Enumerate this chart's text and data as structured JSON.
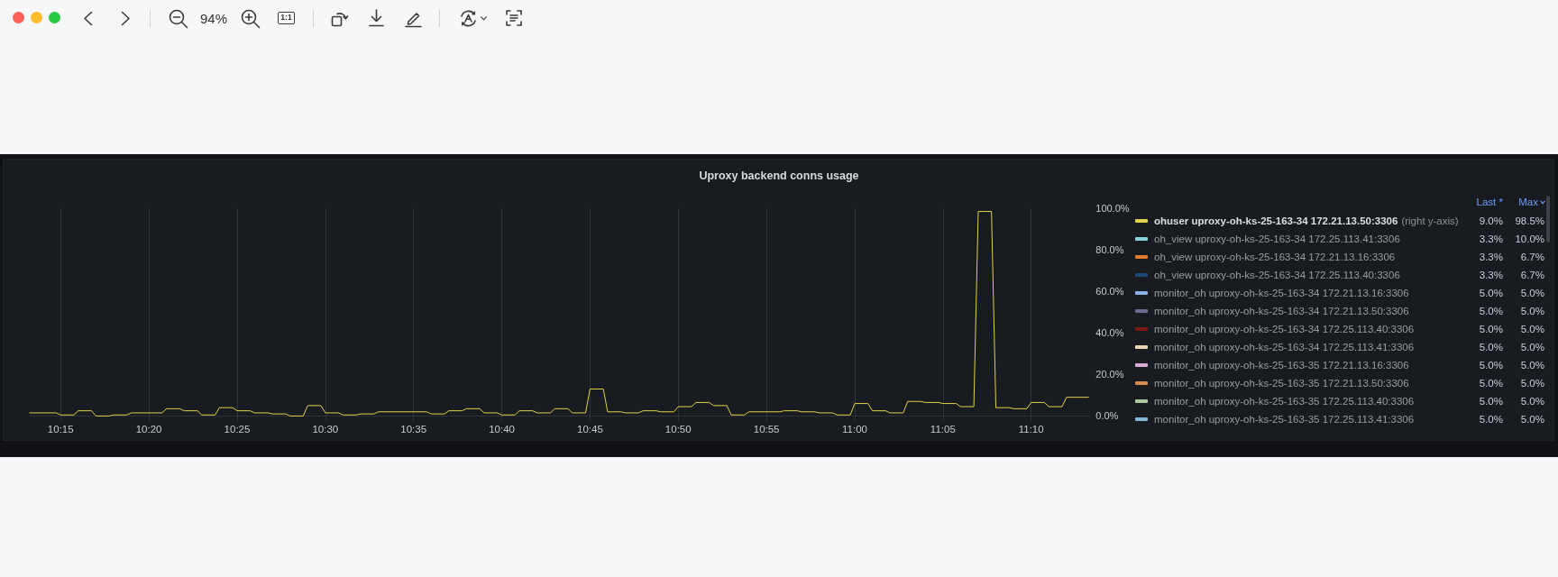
{
  "chart_data": {
    "type": "line",
    "title": "Uproxy backend conns usage",
    "x": [
      10.22083,
      10.24583,
      10.25,
      10.2625,
      10.26667,
      10.27917,
      10.28333,
      10.29583,
      10.3,
      10.3125,
      10.31667,
      10.34583,
      10.35,
      10.3625,
      10.36667,
      10.37917,
      10.38333,
      10.39583,
      10.4,
      10.4125,
      10.41667,
      10.42917,
      10.43333,
      10.44583,
      10.45,
      10.4625,
      10.46667,
      10.47917,
      10.48333,
      10.49583,
      10.5,
      10.5125,
      10.51667,
      10.52917,
      10.53333,
      10.54583,
      10.55,
      10.59583,
      10.6,
      10.6125,
      10.61667,
      10.62917,
      10.63333,
      10.64583,
      10.65,
      10.6625,
      10.66667,
      10.67917,
      10.68333,
      10.69583,
      10.7,
      10.7125,
      10.71667,
      10.72917,
      10.73333,
      10.74583,
      10.75,
      10.7625,
      10.76667,
      10.77917,
      10.78333,
      10.79583,
      10.8,
      10.8125,
      10.81667,
      10.82917,
      10.83333,
      10.84583,
      10.85,
      10.8625,
      10.86667,
      10.87917,
      10.88333,
      10.89583,
      10.9,
      10.92917,
      10.93333,
      10.94583,
      10.95,
      10.9625,
      10.96667,
      10.97917,
      10.98333,
      10.99583,
      11,
      11.0125,
      11.01667,
      11.02917,
      11.03333,
      11.04583,
      11.05,
      11.0625,
      11.06667,
      11.07917,
      11.08333,
      11.09583,
      11.1,
      11.1125,
      11.11667,
      11.12917,
      11.13333,
      11.14583,
      11.15,
      11.1625,
      11.16667,
      11.17917,
      11.18333,
      11.19583,
      11.2,
      11.22083
    ],
    "series": [
      {
        "name": "ohuser uproxy-oh-ks-25-163-34 172.21.13.50:3306",
        "color": "#e3d04a",
        "values": [
          1.5,
          1.5,
          0.5,
          0.5,
          2.5,
          2.5,
          0,
          0,
          0.5,
          0.5,
          1.5,
          1.5,
          3.5,
          3.5,
          2.5,
          2.5,
          0.5,
          0.5,
          4,
          4,
          2.5,
          2.5,
          1.5,
          1.5,
          1,
          1,
          0,
          0,
          5,
          5,
          1.5,
          1.5,
          0.5,
          0.5,
          1,
          1,
          2,
          2,
          1,
          1,
          2.5,
          2.5,
          3.5,
          3.5,
          1.5,
          1.5,
          0.5,
          0.5,
          2.5,
          2.5,
          1.5,
          1.5,
          3.5,
          3.5,
          1.5,
          1.5,
          13,
          13,
          2,
          2,
          1.5,
          1.5,
          2.5,
          2.5,
          2,
          2,
          4.5,
          4.5,
          6.5,
          6.5,
          5,
          5,
          0.5,
          0.5,
          2,
          2,
          2.5,
          2.5,
          2,
          2,
          1.5,
          1.5,
          0.5,
          0.5,
          6,
          6,
          2.5,
          2.5,
          1.5,
          1.5,
          7,
          7,
          6.5,
          6.5,
          6,
          6,
          4.5,
          4.5,
          98.5,
          98.5,
          4,
          4,
          3.5,
          3.5,
          6.5,
          6.5,
          4.5,
          4.5,
          9,
          9
        ]
      },
      {
        "name": "oh_view uproxy-oh-ks-25-163-34 172.25.113.41:3306",
        "color": "#8ad3de",
        "values": [
          null,
          null,
          null,
          null,
          null,
          null,
          null,
          null,
          null,
          null,
          null,
          null,
          null,
          null,
          null,
          null,
          null,
          null,
          null,
          null,
          null,
          null,
          null,
          null,
          null,
          null,
          null,
          null,
          null,
          null,
          null,
          null,
          null,
          null,
          null,
          null,
          null,
          null,
          null,
          null,
          null,
          null,
          null,
          null,
          null,
          null,
          null,
          null,
          null,
          null,
          null,
          null,
          null,
          null,
          null,
          null,
          null,
          null,
          null,
          null,
          null,
          null,
          null,
          null,
          null,
          null,
          null,
          null,
          null,
          null,
          null,
          null,
          null,
          null,
          null,
          null,
          null,
          null,
          null,
          null,
          null,
          null,
          null,
          null,
          null,
          null,
          null,
          null,
          null,
          null,
          null,
          null,
          null,
          null,
          null,
          null,
          null,
          null,
          null,
          null,
          null,
          null,
          null,
          null,
          null,
          null,
          null,
          null,
          null,
          null
        ]
      },
      {
        "name": "oh_view uproxy-oh-ks-25-163-34 172.21.13.16:3306",
        "color": "#e07b30",
        "values": [
          null,
          null,
          null,
          null,
          null,
          null,
          null,
          null,
          null,
          null,
          null,
          null,
          null,
          null,
          null,
          null,
          null,
          null,
          null,
          null,
          null,
          null,
          null,
          null,
          null,
          null,
          null,
          null,
          null,
          null,
          null,
          null,
          null,
          null,
          null,
          null,
          null,
          null,
          null,
          null,
          null,
          null,
          null,
          null,
          null,
          null,
          null,
          null,
          null,
          null,
          null,
          null,
          null,
          null,
          null,
          null,
          null,
          null,
          null,
          null,
          null,
          null,
          null,
          null,
          null,
          null,
          null,
          null,
          null,
          null,
          null,
          null,
          null,
          null,
          null,
          null,
          null,
          null,
          null,
          null,
          null,
          null,
          null,
          null,
          null,
          null,
          null,
          null,
          null,
          null,
          null,
          null,
          null,
          null,
          null,
          null,
          null,
          null,
          null,
          null,
          null,
          null,
          null,
          null,
          null,
          null,
          null,
          null,
          null,
          null
        ]
      },
      {
        "name": "oh_view uproxy-oh-ks-25-163-34 172.25.113.40:3306",
        "color": "#1d4a7c",
        "values": [
          null,
          null,
          null,
          null,
          null,
          null,
          null,
          null,
          null,
          null,
          null,
          null,
          null,
          null,
          null,
          null,
          null,
          null,
          null,
          null,
          null,
          null,
          null,
          null,
          null,
          null,
          null,
          null,
          null,
          null,
          null,
          null,
          null,
          null,
          null,
          null,
          null,
          null,
          null,
          null,
          null,
          null,
          null,
          null,
          null,
          null,
          null,
          null,
          null,
          null,
          null,
          null,
          null,
          null,
          null,
          null,
          null,
          null,
          null,
          null,
          null,
          null,
          null,
          null,
          null,
          null,
          null,
          null,
          null,
          null,
          null,
          null,
          null,
          null,
          null,
          null,
          null,
          null,
          null,
          null,
          null,
          null,
          null,
          null,
          null,
          null,
          null,
          null,
          null,
          null,
          null,
          null,
          null,
          null,
          null,
          null,
          null,
          null,
          null,
          null,
          null,
          null,
          null,
          null,
          null,
          null,
          null,
          null,
          null,
          null
        ]
      },
      {
        "name": "monitor_oh uproxy-oh-ks-25-163-34 172.21.13.16:3306",
        "color": "#8ab2e8",
        "values": [
          null,
          null,
          null,
          null,
          null,
          null,
          null,
          null,
          null,
          null,
          null,
          null,
          null,
          null,
          null,
          null,
          null,
          null,
          null,
          null,
          null,
          null,
          null,
          null,
          null,
          null,
          null,
          null,
          null,
          null,
          null,
          null,
          null,
          null,
          null,
          null,
          null,
          null,
          null,
          null,
          null,
          null,
          null,
          null,
          null,
          null,
          null,
          null,
          null,
          null,
          null,
          null,
          null,
          null,
          null,
          null,
          null,
          null,
          null,
          null,
          null,
          null,
          null,
          null,
          null,
          null,
          null,
          null,
          null,
          null,
          null,
          null,
          null,
          null,
          null,
          null,
          null,
          null,
          null,
          null,
          null,
          null,
          null,
          null,
          null,
          null,
          null,
          null,
          null,
          null,
          null,
          null,
          null,
          null,
          null,
          null,
          null,
          null,
          null,
          null,
          null,
          null,
          null,
          null,
          null,
          null,
          null,
          null,
          null,
          null
        ]
      },
      {
        "name": "monitor_oh uproxy-oh-ks-25-163-34 172.21.13.50:3306",
        "color": "#6e6896",
        "values": [
          null,
          null,
          null,
          null,
          null,
          null,
          null,
          null,
          null,
          null,
          null,
          null,
          null,
          null,
          null,
          null,
          null,
          null,
          null,
          null,
          null,
          null,
          null,
          null,
          null,
          null,
          null,
          null,
          null,
          null,
          null,
          null,
          null,
          null,
          null,
          null,
          null,
          null,
          null,
          null,
          null,
          null,
          null,
          null,
          null,
          null,
          null,
          null,
          null,
          null,
          null,
          null,
          null,
          null,
          null,
          null,
          null,
          null,
          null,
          null,
          null,
          null,
          null,
          null,
          null,
          null,
          null,
          null,
          null,
          null,
          null,
          null,
          null,
          null,
          null,
          null,
          null,
          null,
          null,
          null,
          null,
          null,
          null,
          null,
          null,
          null,
          null,
          null,
          null,
          null,
          null,
          null,
          null,
          null,
          null,
          null,
          null,
          null,
          null,
          null,
          null,
          null,
          null,
          null,
          null,
          null,
          null,
          null,
          null,
          null
        ]
      },
      {
        "name": "monitor_oh uproxy-oh-ks-25-163-34 172.25.113.40:3306",
        "color": "#7d1813",
        "values": [
          null,
          null,
          null,
          null,
          null,
          null,
          null,
          null,
          null,
          null,
          null,
          null,
          null,
          null,
          null,
          null,
          null,
          null,
          null,
          null,
          null,
          null,
          null,
          null,
          null,
          null,
          null,
          null,
          null,
          null,
          null,
          null,
          null,
          null,
          null,
          null,
          null,
          null,
          null,
          null,
          null,
          null,
          null,
          null,
          null,
          null,
          null,
          null,
          null,
          null,
          null,
          null,
          null,
          null,
          null,
          null,
          null,
          null,
          null,
          null,
          null,
          null,
          null,
          null,
          null,
          null,
          null,
          null,
          null,
          null,
          null,
          null,
          null,
          null,
          null,
          null,
          null,
          null,
          null,
          null,
          null,
          null,
          null,
          null,
          null,
          null,
          null,
          null,
          null,
          null,
          null,
          null,
          null,
          null,
          null,
          null,
          null,
          null,
          null,
          null,
          null,
          null,
          null,
          null,
          null,
          null,
          null,
          null,
          null,
          null
        ]
      },
      {
        "name": "monitor_oh uproxy-oh-ks-25-163-34 172.25.113.41:3306",
        "color": "#ead6b2",
        "values": [
          null,
          null,
          null,
          null,
          null,
          null,
          null,
          null,
          null,
          null,
          null,
          null,
          null,
          null,
          null,
          null,
          null,
          null,
          null,
          null,
          null,
          null,
          null,
          null,
          null,
          null,
          null,
          null,
          null,
          null,
          null,
          null,
          null,
          null,
          null,
          null,
          null,
          null,
          null,
          null,
          null,
          null,
          null,
          null,
          null,
          null,
          null,
          null,
          null,
          null,
          null,
          null,
          null,
          null,
          null,
          null,
          null,
          null,
          null,
          null,
          null,
          null,
          null,
          null,
          null,
          null,
          null,
          null,
          null,
          null,
          null,
          null,
          null,
          null,
          null,
          null,
          null,
          null,
          null,
          null,
          null,
          null,
          null,
          null,
          null,
          null,
          null,
          null,
          null,
          null,
          null,
          null,
          null,
          null,
          null,
          null,
          null,
          null,
          null,
          null,
          null,
          null,
          null,
          null,
          null,
          null,
          null,
          null,
          null,
          null
        ]
      },
      {
        "name": "monitor_oh uproxy-oh-ks-25-163-35 172.21.13.16:3306",
        "color": "#dba9db",
        "values": [
          null,
          null,
          null,
          null,
          null,
          null,
          null,
          null,
          null,
          null,
          null,
          null,
          null,
          null,
          null,
          null,
          null,
          null,
          null,
          null,
          null,
          null,
          null,
          null,
          null,
          null,
          null,
          null,
          null,
          null,
          null,
          null,
          null,
          null,
          null,
          null,
          null,
          null,
          null,
          null,
          null,
          null,
          null,
          null,
          null,
          null,
          null,
          null,
          null,
          null,
          null,
          null,
          null,
          null,
          null,
          null,
          null,
          null,
          null,
          null,
          null,
          null,
          null,
          null,
          null,
          null,
          null,
          null,
          null,
          null,
          null,
          null,
          null,
          null,
          null,
          null,
          null,
          null,
          null,
          null,
          null,
          null,
          null,
          null,
          null,
          null,
          null,
          null,
          null,
          null,
          null,
          null,
          null,
          null,
          null,
          null,
          null,
          null,
          null,
          null,
          null,
          null,
          null,
          null,
          null,
          null,
          null,
          null,
          null,
          null
        ]
      },
      {
        "name": "monitor_oh uproxy-oh-ks-25-163-35 172.21.13.50:3306",
        "color": "#d98a4c",
        "values": [
          null,
          null,
          null,
          null,
          null,
          null,
          null,
          null,
          null,
          null,
          null,
          null,
          null,
          null,
          null,
          null,
          null,
          null,
          null,
          null,
          null,
          null,
          null,
          null,
          null,
          null,
          null,
          null,
          null,
          null,
          null,
          null,
          null,
          null,
          null,
          null,
          null,
          null,
          null,
          null,
          null,
          null,
          null,
          null,
          null,
          null,
          null,
          null,
          null,
          null,
          null,
          null,
          null,
          null,
          null,
          null,
          null,
          null,
          null,
          null,
          null,
          null,
          null,
          null,
          null,
          null,
          null,
          null,
          null,
          null,
          null,
          null,
          null,
          null,
          null,
          null,
          null,
          null,
          null,
          null,
          null,
          null,
          null,
          null,
          null,
          null,
          null,
          null,
          null,
          null,
          null,
          null,
          null,
          null,
          null,
          null,
          null,
          null,
          null,
          null,
          null,
          null,
          null,
          null,
          null,
          null,
          null,
          null,
          null,
          null
        ]
      },
      {
        "name": "monitor_oh uproxy-oh-ks-25-163-35 172.25.113.40:3306",
        "color": "#a9c99b",
        "values": [
          null,
          null,
          null,
          null,
          null,
          null,
          null,
          null,
          null,
          null,
          null,
          null,
          null,
          null,
          null,
          null,
          null,
          null,
          null,
          null,
          null,
          null,
          null,
          null,
          null,
          null,
          null,
          null,
          null,
          null,
          null,
          null,
          null,
          null,
          null,
          null,
          null,
          null,
          null,
          null,
          null,
          null,
          null,
          null,
          null,
          null,
          null,
          null,
          null,
          null,
          null,
          null,
          null,
          null,
          null,
          null,
          null,
          null,
          null,
          null,
          null,
          null,
          null,
          null,
          null,
          null,
          null,
          null,
          null,
          null,
          null,
          null,
          null,
          null,
          null,
          null,
          null,
          null,
          null,
          null,
          null,
          null,
          null,
          null,
          null,
          null,
          null,
          null,
          null,
          null,
          null,
          null,
          null,
          null,
          null,
          null,
          null,
          null,
          null,
          null,
          null,
          null,
          null,
          null,
          null,
          null,
          null,
          null,
          null,
          null
        ]
      },
      {
        "name": "monitor_oh uproxy-oh-ks-25-163-35 172.25.113.41:3306",
        "color": "#82b5d8",
        "values": [
          null,
          null,
          null,
          null,
          null,
          null,
          null,
          null,
          null,
          null,
          null,
          null,
          null,
          null,
          null,
          null,
          null,
          null,
          null,
          null,
          null,
          null,
          null,
          null,
          null,
          null,
          null,
          null,
          null,
          null,
          null,
          null,
          null,
          null,
          null,
          null,
          null,
          null,
          null,
          null,
          null,
          null,
          null,
          null,
          null,
          null,
          null,
          null,
          null,
          null,
          null,
          null,
          null,
          null,
          null,
          null,
          null,
          null,
          null,
          null,
          null,
          null,
          null,
          null,
          null,
          null,
          null,
          null,
          null,
          null,
          null,
          null,
          null,
          null,
          null,
          null,
          null,
          null,
          null,
          null,
          null,
          null,
          null,
          null,
          null,
          null,
          null,
          null,
          null,
          null,
          null,
          null,
          null,
          null,
          null,
          null,
          null,
          null,
          null,
          null,
          null,
          null,
          null,
          null,
          null,
          null,
          null,
          null,
          null,
          null
        ]
      }
    ],
    "xlim": [
      10.22083,
      11.22083
    ],
    "xticks": [
      {
        "value": 10.25,
        "label": "10:15"
      },
      {
        "value": 10.33333,
        "label": "10:20"
      },
      {
        "value": 10.41667,
        "label": "10:25"
      },
      {
        "value": 10.5,
        "label": "10:30"
      },
      {
        "value": 10.58333,
        "label": "10:35"
      },
      {
        "value": 10.66667,
        "label": "10:40"
      },
      {
        "value": 10.75,
        "label": "10:45"
      },
      {
        "value": 10.83333,
        "label": "10:50"
      },
      {
        "value": 10.91667,
        "label": "10:55"
      },
      {
        "value": 11,
        "label": "11:00"
      },
      {
        "value": 11.08333,
        "label": "11:05"
      },
      {
        "value": 11.16667,
        "label": "11:10"
      }
    ],
    "ylim": [
      0,
      100
    ],
    "yticks": [
      {
        "value": 0,
        "label": "0.0%"
      },
      {
        "value": 20,
        "label": "20.0%"
      },
      {
        "value": 40,
        "label": "40.0%"
      },
      {
        "value": 60,
        "label": "60.0%"
      },
      {
        "value": 80,
        "label": "80.0%"
      },
      {
        "value": 100,
        "label": "100.0%"
      }
    ],
    "grid": "x",
    "legend": "right",
    "annotations": [
      "94%",
      "1:1",
      "(right y-axis)",
      "Last *",
      "Max",
      "9.0%",
      "98.5%",
      "3.3%",
      "10.0%",
      "3.3%",
      "6.7%",
      "3.3%",
      "6.7%",
      "5.0%",
      "5.0%",
      "5.0%",
      "5.0%",
      "5.0%",
      "5.0%",
      "5.0%",
      "5.0%",
      "5.0%",
      "5.0%",
      "5.0%",
      "5.0%",
      "5.0%",
      "5.0%",
      "5.0%",
      "5.0%"
    ]
  }
}
